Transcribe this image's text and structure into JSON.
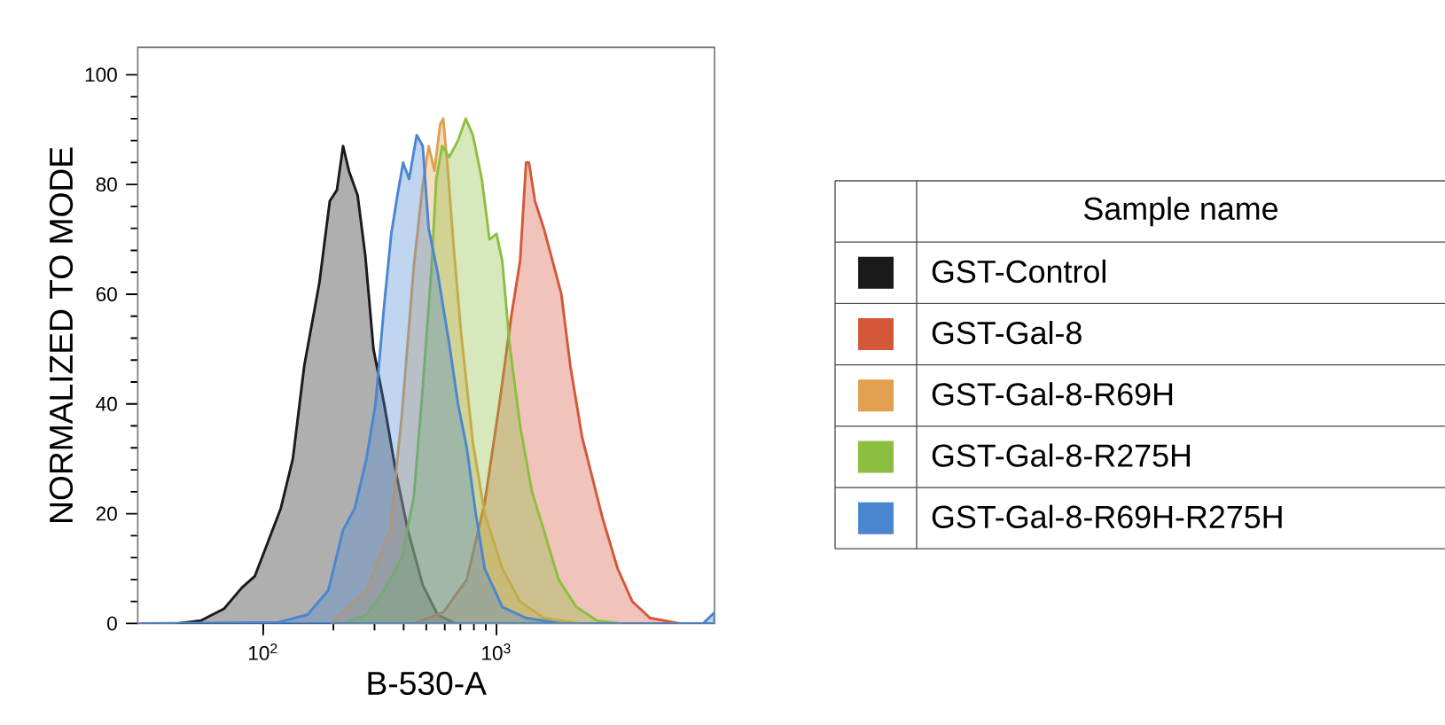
{
  "chart_data": {
    "type": "area",
    "xlabel": "B-530-A",
    "ylabel": "NORMALIZED TO MODE",
    "legend_title": "Sample name",
    "legend": "right",
    "log": "x",
    "xlim": [
      29,
      8600
    ],
    "ylim": [
      0,
      105
    ],
    "xticks": [
      {
        "value": 100,
        "label": "10$^{2}$"
      },
      {
        "value": 1000,
        "label": "10$^{3}$"
      }
    ],
    "yticks": [
      0,
      20,
      40,
      60,
      80,
      100
    ],
    "series": [
      {
        "name": "GST-Control",
        "color": "#1a1a1a",
        "x": [
          43,
          54,
          68,
          81,
          92,
          103,
          119,
          134,
          150,
          174,
          193,
          207,
          220,
          233,
          254,
          274,
          297,
          330,
          371,
          417,
          483,
          559,
          665
        ],
        "values": [
          0,
          0.5,
          2.7,
          6.5,
          8.6,
          14,
          21,
          30,
          47,
          62,
          77,
          79,
          87,
          82.5,
          78,
          67,
          50,
          40,
          27.5,
          17,
          7,
          1.6,
          0
        ]
      },
      {
        "name": "GST-Gal-8",
        "color": "#d4573a",
        "x": [
          442,
          591,
          746,
          890,
          1029,
          1157,
          1262,
          1339,
          1378,
          1461,
          1595,
          1791,
          1897,
          2071,
          2327,
          2542,
          2857,
          3305,
          3819,
          4550,
          6095
        ],
        "values": [
          0,
          2,
          8,
          22,
          40,
          56,
          66,
          84,
          84,
          77,
          72,
          64,
          60,
          47,
          34,
          27.5,
          19,
          10,
          4,
          1,
          0
        ]
      },
      {
        "name": "GST-Gal-8-R69H",
        "color": "#e0a050",
        "x": [
          195,
          277,
          350,
          393,
          442,
          483,
          512,
          542,
          574,
          591,
          619,
          657,
          705,
          792,
          890,
          1059,
          1262,
          1595,
          2259
        ],
        "values": [
          0,
          6,
          17,
          38,
          65,
          80,
          87,
          82.5,
          91,
          92,
          82.5,
          68,
          53,
          33,
          20,
          10,
          4,
          1,
          0
        ]
      },
      {
        "name": "GST-Gal-8-R275H",
        "color": "#8cbf3f",
        "x": [
          220,
          277,
          330,
          393,
          442,
          483,
          527,
          552,
          585,
          627,
          684,
          738,
          792,
          865,
          933,
          1000,
          1059,
          1137,
          1262,
          1419,
          1595,
          1845,
          2198,
          2694,
          3404
        ],
        "values": [
          0,
          1.6,
          6,
          12,
          23,
          43,
          65,
          81,
          87,
          85,
          88,
          92,
          89,
          81,
          70,
          71,
          66,
          51,
          36,
          24,
          17,
          8,
          3,
          0.5,
          0
        ]
      },
      {
        "name": "GST-Gal-8-R69H-R275H",
        "color": "#4a86d0",
        "x": [
          30,
          116,
          155,
          190,
          220,
          247,
          277,
          303,
          330,
          354,
          376,
          398,
          422,
          455,
          483,
          512,
          559,
          627,
          684,
          746,
          815,
          890,
          1059,
          1339,
          1897,
          7690,
          8600
        ],
        "values": [
          0,
          0.2,
          1.6,
          6,
          17,
          21,
          30,
          40,
          58,
          71,
          78,
          84,
          81,
          89,
          87,
          72,
          64,
          51,
          40,
          32,
          20,
          10,
          3,
          1,
          0,
          0,
          2
        ]
      }
    ]
  }
}
